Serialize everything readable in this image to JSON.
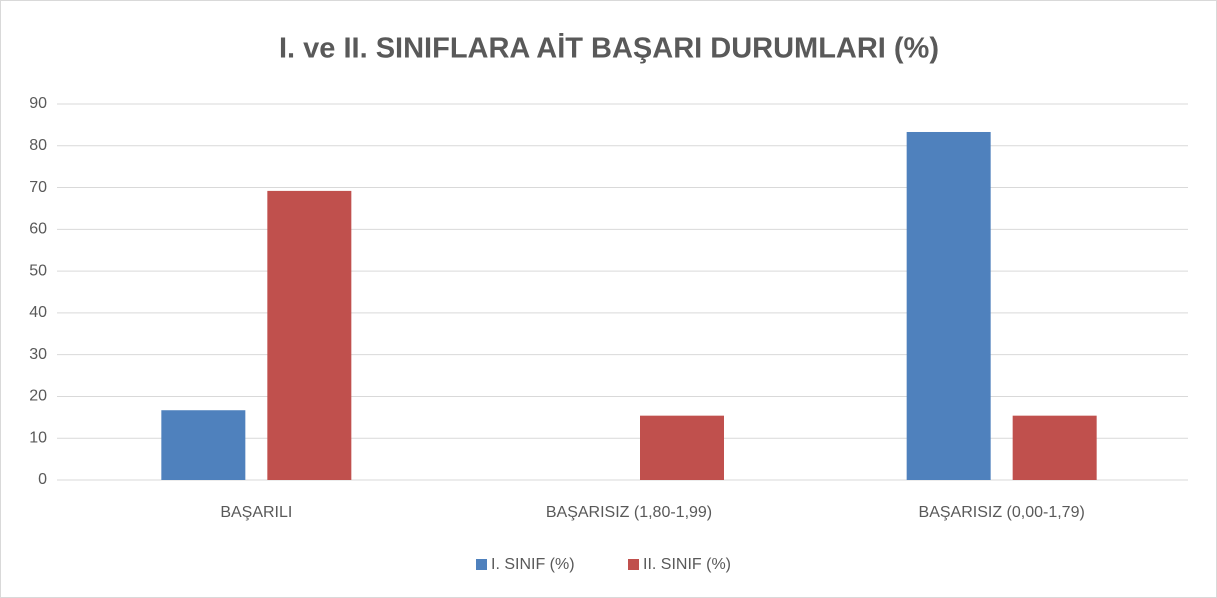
{
  "chart_data": {
    "type": "bar",
    "title": "I. ve II. SINIFLARA AİT BAŞARI DURUMLARI (%)",
    "categories": [
      "BAŞARILI",
      "BAŞARISIZ (1,80-1,99)",
      "BAŞARISIZ (0,00-1,79)"
    ],
    "series": [
      {
        "name": "I. SINIF (%)",
        "color": "#4f81bd",
        "values": [
          16.7,
          0,
          83.3
        ]
      },
      {
        "name": "II. SINIF (%)",
        "color": "#c0504d",
        "values": [
          69.2,
          15.4,
          15.4
        ]
      }
    ],
    "ylim": [
      0,
      90
    ],
    "yticks": [
      0,
      10,
      20,
      30,
      40,
      50,
      60,
      70,
      80,
      90
    ],
    "grid": true,
    "legend": "bottom"
  }
}
